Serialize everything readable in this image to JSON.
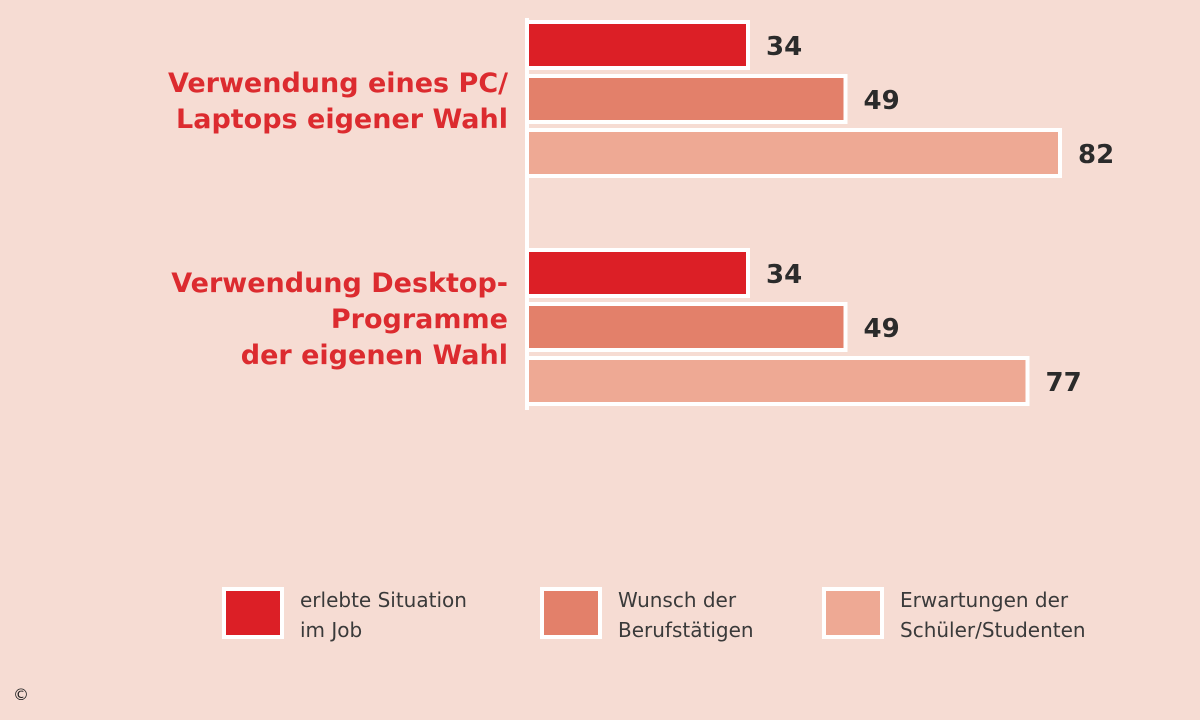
{
  "chart_data": {
    "type": "bar",
    "orientation": "horizontal",
    "categories": [
      "Verwendung eines PC/ Laptops eigener Wahl",
      "Verwendung Desktop-Programme der eigenen Wahl"
    ],
    "category_lines": [
      [
        "Verwendung eines PC/",
        "Laptops eigener Wahl"
      ],
      [
        "Verwendung Desktop-",
        "Programme",
        "der eigenen Wahl"
      ]
    ],
    "series": [
      {
        "name": "erlebte Situation im Job",
        "name_lines": [
          "erlebte Situation",
          "im Job"
        ],
        "values": [
          34,
          34
        ],
        "color": "#dc1f26"
      },
      {
        "name": "Wunsch der Berufstätigen",
        "name_lines": [
          "Wunsch der",
          "Berufstätigen"
        ],
        "values": [
          49,
          49
        ],
        "color": "#e3806a"
      },
      {
        "name": "Erwartungen der Schüler/Studenten",
        "name_lines": [
          "Erwartungen der",
          "Schüler/Studenten"
        ],
        "values": [
          82,
          77
        ],
        "color": "#eea994"
      }
    ],
    "data_labels": [
      [
        "34",
        "34"
      ],
      [
        "49",
        "49"
      ],
      [
        "82",
        "77"
      ]
    ],
    "title": "",
    "xlabel": "",
    "ylabel": "",
    "xlim": [
      0,
      100
    ],
    "grid": false,
    "legend": "bottom"
  },
  "copyright_symbol": "©",
  "colors": {
    "background": "#f6dcd3",
    "category_text": "#dc2b2f",
    "bar_border": "#ffffff",
    "axis": "#ffffff"
  }
}
